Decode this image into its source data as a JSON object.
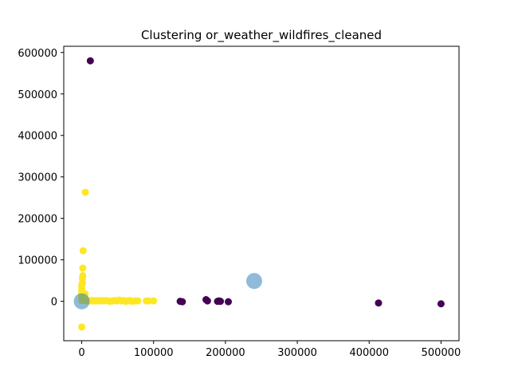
{
  "chart_data": {
    "type": "scatter",
    "title": "Clustering or_weather_wildfires_cleaned",
    "xlabel": "",
    "ylabel": "",
    "xlim": [
      -25000,
      525000
    ],
    "ylim": [
      -95000,
      615000
    ],
    "x_ticks": [
      0,
      100000,
      200000,
      300000,
      400000,
      500000
    ],
    "y_ticks": [
      0,
      100000,
      200000,
      300000,
      400000,
      500000,
      600000
    ],
    "x_tick_labels": [
      "0",
      "100000",
      "200000",
      "300000",
      "400000",
      "500000"
    ],
    "y_tick_labels": [
      "0",
      "100000",
      "200000",
      "300000",
      "400000",
      "500000",
      "600000"
    ],
    "grid": false,
    "legend": "none",
    "series": [
      {
        "color": "#fde725",
        "points": [
          [
            0,
            -62000
          ],
          [
            0,
            2000
          ],
          [
            0,
            8000
          ],
          [
            0,
            15000
          ],
          [
            0,
            22000
          ],
          [
            0,
            30000
          ],
          [
            0,
            38000
          ],
          [
            1000,
            45000
          ],
          [
            1000,
            55000
          ],
          [
            1500,
            62000
          ],
          [
            1500,
            80000
          ],
          [
            2000,
            122000
          ],
          [
            5000,
            263000
          ],
          [
            1000,
            5000
          ],
          [
            2000,
            3000
          ],
          [
            3000,
            8000
          ],
          [
            4000,
            12000
          ],
          [
            4500,
            18000
          ],
          [
            5000,
            2000
          ],
          [
            6000,
            1000
          ],
          [
            8000,
            2000
          ],
          [
            10000,
            1000
          ],
          [
            12000,
            2000
          ],
          [
            14000,
            1000
          ],
          [
            16000,
            2000
          ],
          [
            18000,
            1000
          ],
          [
            20000,
            2000
          ],
          [
            22000,
            1000
          ],
          [
            24000,
            2000
          ],
          [
            26000,
            1000
          ],
          [
            28000,
            2000
          ],
          [
            31000,
            1000
          ],
          [
            34000,
            2000
          ],
          [
            37000,
            1000
          ],
          [
            40000,
            0
          ],
          [
            43000,
            1000
          ],
          [
            46000,
            2000
          ],
          [
            49000,
            1000
          ],
          [
            52000,
            3000
          ],
          [
            55000,
            1000
          ],
          [
            58000,
            2000
          ],
          [
            61000,
            0
          ],
          [
            64000,
            1000
          ],
          [
            67000,
            2000
          ],
          [
            70000,
            0
          ],
          [
            74000,
            1000
          ],
          [
            78000,
            1000
          ],
          [
            90000,
            1000
          ],
          [
            93000,
            1000
          ],
          [
            100000,
            1000
          ]
        ]
      },
      {
        "color": "#440154",
        "points": [
          [
            12000,
            580000
          ],
          [
            137000,
            0
          ],
          [
            140000,
            -1000
          ],
          [
            173000,
            4000
          ],
          [
            175000,
            1000
          ],
          [
            189000,
            0
          ],
          [
            191000,
            1000
          ],
          [
            193000,
            0
          ],
          [
            204000,
            -1000
          ],
          [
            413000,
            -4000
          ],
          [
            500000,
            -6000
          ]
        ]
      }
    ],
    "centroids": {
      "color": "#1f77b4",
      "opacity": 0.5,
      "points": [
        [
          0,
          0
        ],
        [
          240000,
          49000
        ]
      ]
    }
  }
}
